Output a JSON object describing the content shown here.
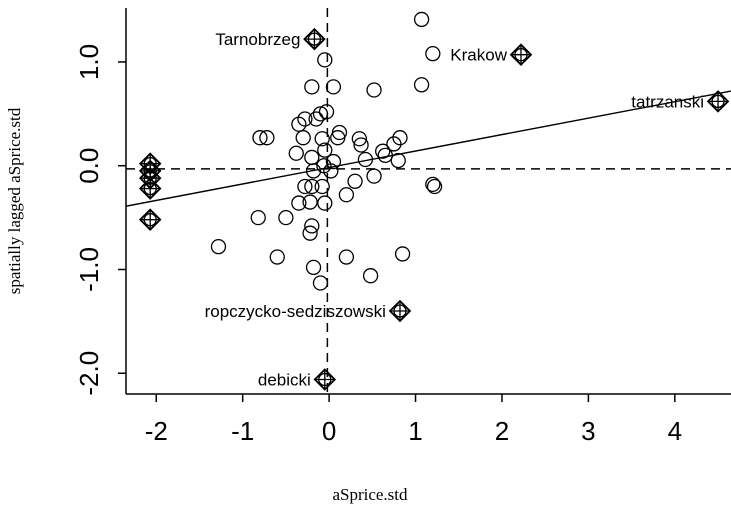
{
  "chart_data": {
    "type": "scatter",
    "title": "",
    "xlabel": "aSprice.std",
    "ylabel": "spatially lagged aSprice.std",
    "xlim": [
      -2.35,
      4.65
    ],
    "ylim": [
      -2.2,
      1.52
    ],
    "x_ticks": [
      -2,
      -1,
      0,
      1,
      2,
      3,
      4
    ],
    "x_tick_labels": [
      "-2",
      "-1",
      "0",
      "1",
      "2",
      "3",
      "4"
    ],
    "y_ticks": [
      -2.0,
      -1.0,
      0.0,
      1.0
    ],
    "y_tick_labels": [
      "-2.0",
      "-1.0",
      "0.0",
      "1.0"
    ],
    "grid": false,
    "reference_lines": {
      "x": -0.02,
      "y": -0.03
    },
    "regression_line": {
      "x0": -2.35,
      "y0": -0.39,
      "x1": 4.65,
      "y1": 0.72
    },
    "points": [
      {
        "x": 1.07,
        "y": 1.41
      },
      {
        "x": 1.2,
        "y": 1.08
      },
      {
        "x": -0.05,
        "y": 1.02
      },
      {
        "x": -0.2,
        "y": 0.76
      },
      {
        "x": 0.05,
        "y": 0.76
      },
      {
        "x": 0.52,
        "y": 0.73
      },
      {
        "x": 1.07,
        "y": 0.78
      },
      {
        "x": -0.3,
        "y": 0.27
      },
      {
        "x": -0.1,
        "y": 0.5
      },
      {
        "x": -0.03,
        "y": 0.52
      },
      {
        "x": -0.8,
        "y": 0.27
      },
      {
        "x": -0.72,
        "y": 0.27
      },
      {
        "x": -0.35,
        "y": 0.4
      },
      {
        "x": -0.28,
        "y": 0.45
      },
      {
        "x": -0.15,
        "y": 0.45
      },
      {
        "x": 0.12,
        "y": 0.32
      },
      {
        "x": 0.1,
        "y": 0.27
      },
      {
        "x": -0.08,
        "y": 0.26
      },
      {
        "x": 0.35,
        "y": 0.26
      },
      {
        "x": 0.37,
        "y": 0.2
      },
      {
        "x": 0.82,
        "y": 0.27
      },
      {
        "x": 0.75,
        "y": 0.21
      },
      {
        "x": -0.38,
        "y": 0.12
      },
      {
        "x": -0.2,
        "y": 0.08
      },
      {
        "x": -0.05,
        "y": 0.15
      },
      {
        "x": 0.05,
        "y": 0.04
      },
      {
        "x": 0.42,
        "y": 0.06
      },
      {
        "x": 0.62,
        "y": 0.14
      },
      {
        "x": 0.65,
        "y": 0.1
      },
      {
        "x": 0.8,
        "y": 0.05
      },
      {
        "x": -0.28,
        "y": -0.2
      },
      {
        "x": -0.18,
        "y": -0.05
      },
      {
        "x": -0.06,
        "y": 0.0
      },
      {
        "x": 0.02,
        "y": -0.05
      },
      {
        "x": 0.3,
        "y": -0.15
      },
      {
        "x": 0.52,
        "y": -0.1
      },
      {
        "x": 1.2,
        "y": -0.18
      },
      {
        "x": 1.22,
        "y": -0.2
      },
      {
        "x": -0.2,
        "y": -0.2
      },
      {
        "x": -0.08,
        "y": -0.2
      },
      {
        "x": 0.2,
        "y": -0.28
      },
      {
        "x": -0.35,
        "y": -0.36
      },
      {
        "x": -0.22,
        "y": -0.35
      },
      {
        "x": -0.05,
        "y": -0.36
      },
      {
        "x": -0.82,
        "y": -0.5
      },
      {
        "x": -0.5,
        "y": -0.5
      },
      {
        "x": -0.2,
        "y": -0.58
      },
      {
        "x": -0.22,
        "y": -0.65
      },
      {
        "x": -1.28,
        "y": -0.78
      },
      {
        "x": -0.6,
        "y": -0.88
      },
      {
        "x": 0.2,
        "y": -0.88
      },
      {
        "x": 0.85,
        "y": -0.85
      },
      {
        "x": -0.18,
        "y": -0.98
      },
      {
        "x": 0.48,
        "y": -1.06
      },
      {
        "x": -0.1,
        "y": -1.13
      }
    ],
    "influential_points": [
      {
        "x": -0.17,
        "y": 1.22,
        "label": "Tarnobrzeg",
        "label_side": "left"
      },
      {
        "x": 2.22,
        "y": 1.07,
        "label": "Krakow",
        "label_side": "left"
      },
      {
        "x": 4.5,
        "y": 0.62,
        "label": "tatrzanski",
        "label_side": "left"
      },
      {
        "x": 0.82,
        "y": -1.4,
        "label": "ropczycko-sedziszowski",
        "label_side": "left"
      },
      {
        "x": -0.05,
        "y": -2.06,
        "label": "debicki",
        "label_side": "left"
      },
      {
        "x": -2.07,
        "y": 0.02,
        "label": ""
      },
      {
        "x": -2.07,
        "y": -0.05,
        "label": ""
      },
      {
        "x": -2.07,
        "y": -0.12,
        "label": ""
      },
      {
        "x": -2.07,
        "y": -0.22,
        "label": ""
      },
      {
        "x": -2.07,
        "y": -0.52,
        "label": ""
      }
    ]
  }
}
